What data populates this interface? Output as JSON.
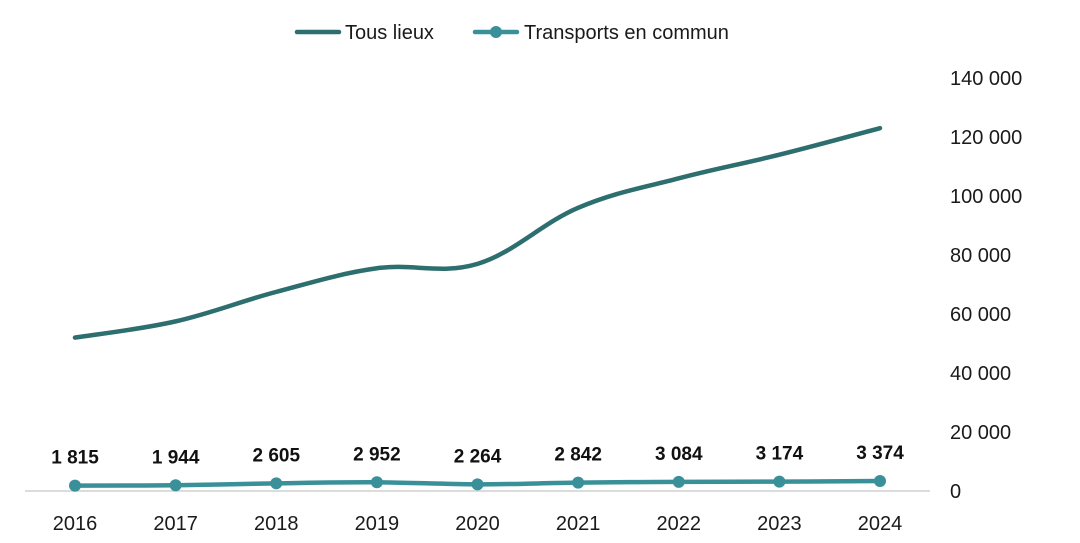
{
  "chart_data": {
    "type": "line",
    "title": "",
    "xlabel": "",
    "ylabel": "",
    "categories": [
      "2016",
      "2017",
      "2018",
      "2019",
      "2020",
      "2021",
      "2022",
      "2023",
      "2024"
    ],
    "series": [
      {
        "name": "Tous lieux",
        "values": [
          52000,
          57500,
          67500,
          75500,
          77000,
          96000,
          106000,
          114000,
          123000
        ],
        "color": "#2d6e6f",
        "markers": false,
        "data_labels": false
      },
      {
        "name": "Transports en commun",
        "values": [
          1815,
          1944,
          2605,
          2952,
          2264,
          2842,
          3084,
          3174,
          3374
        ],
        "labels": [
          "1 815",
          "1 944",
          "2 605",
          "2 952",
          "2 264",
          "2 842",
          "3 084",
          "3 174",
          "3 374"
        ],
        "color": "#3a9099",
        "markers": true,
        "data_labels": true
      }
    ],
    "ylim": [
      0,
      140000
    ],
    "yticks": [
      0,
      20000,
      40000,
      60000,
      80000,
      100000,
      120000,
      140000
    ],
    "ytick_labels": [
      "0",
      "20 000",
      "40 000",
      "60 000",
      "80 000",
      "100 000",
      "120 000",
      "140 000"
    ],
    "y_axis_side": "right",
    "grid": false,
    "legend_position": "top-center"
  }
}
